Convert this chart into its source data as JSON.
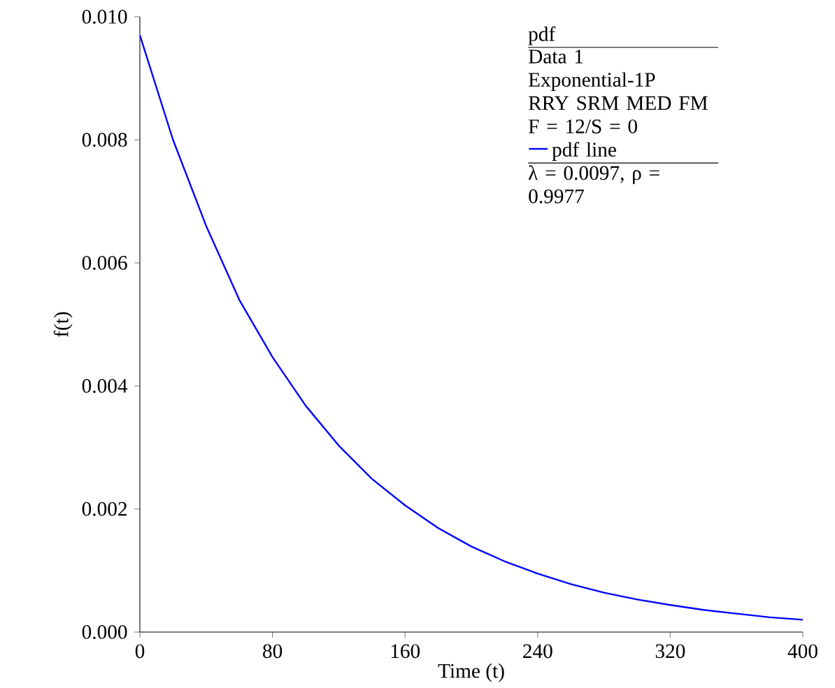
{
  "chart_data": {
    "type": "line",
    "xlabel": "Time (t)",
    "ylabel": "f(t)",
    "legend_title": "pdf",
    "annotations": [
      "Data 1",
      "Exponential-1P",
      "RRY SRM MED FM",
      "F = 12/S = 0",
      "λ = 0.0097, ρ = 0.9977"
    ],
    "x": [
      0,
      20,
      40,
      60,
      80,
      100,
      120,
      140,
      160,
      180,
      200,
      220,
      240,
      260,
      280,
      300,
      320,
      340,
      360,
      380,
      400
    ],
    "series": [
      {
        "name": "pdf line",
        "color": "#0000ff",
        "values": [
          0.0097,
          0.008,
          0.0066,
          0.0054,
          0.00447,
          0.00368,
          0.00303,
          0.00249,
          0.00206,
          0.00169,
          0.00139,
          0.00115,
          0.00095,
          0.00078,
          0.00064,
          0.00053,
          0.00044,
          0.00036,
          0.0003,
          0.00024,
          0.0002
        ]
      }
    ],
    "xlim": [
      0,
      400
    ],
    "ylim": [
      0,
      0.01
    ],
    "xticks": [
      0,
      80,
      160,
      240,
      320,
      400
    ],
    "yticks": [
      {
        "value": 0,
        "label": "0.000"
      },
      0.002,
      0.004,
      0.006,
      0.008,
      {
        "value": 0.01,
        "label": "0.010"
      }
    ],
    "legend": "top right",
    "line_style": "solid",
    "grid": false
  }
}
